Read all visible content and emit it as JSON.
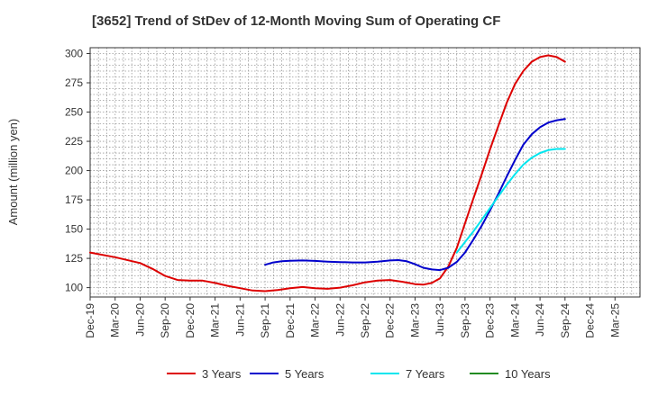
{
  "chart_data": {
    "type": "line",
    "title": "[3652]  Trend of StDev of 12-Month Moving Sum of Operating CF",
    "ylabel": "Amount (million yen)",
    "xlabel": "",
    "ylim": [
      92,
      305
    ],
    "yticks": [
      100,
      125,
      150,
      175,
      200,
      225,
      250,
      275,
      300
    ],
    "categories": [
      "Dec-19",
      "Mar-20",
      "Jun-20",
      "Sep-20",
      "Dec-20",
      "Mar-21",
      "Jun-21",
      "Sep-21",
      "Dec-21",
      "Mar-22",
      "Jun-22",
      "Sep-22",
      "Dec-22",
      "Mar-23",
      "Jun-23",
      "Sep-23",
      "Dec-23",
      "Mar-24",
      "Jun-24",
      "Sep-24",
      "Dec-24",
      "Mar-25"
    ],
    "grid": true,
    "legend_position": "bottom",
    "series": [
      {
        "name": "3 Years",
        "color": "#dd0000",
        "points": [
          [
            0,
            130
          ],
          [
            1,
            126
          ],
          [
            2,
            121
          ],
          [
            2.5,
            116
          ],
          [
            3,
            110
          ],
          [
            3.5,
            106.5
          ],
          [
            4,
            106
          ],
          [
            4.5,
            106
          ],
          [
            5,
            104
          ],
          [
            5.5,
            101.5
          ],
          [
            6,
            99.5
          ],
          [
            6.5,
            97.5
          ],
          [
            7,
            97
          ],
          [
            7.5,
            98
          ],
          [
            8,
            99.5
          ],
          [
            8.5,
            100.5
          ],
          [
            9,
            99.5
          ],
          [
            9.5,
            99
          ],
          [
            10,
            100
          ],
          [
            10.5,
            102
          ],
          [
            11,
            104.5
          ],
          [
            11.5,
            106
          ],
          [
            12,
            106.5
          ],
          [
            12.5,
            105
          ],
          [
            13,
            103
          ],
          [
            13.33,
            102.5
          ],
          [
            13.67,
            104
          ],
          [
            14,
            108
          ],
          [
            14.33,
            118
          ],
          [
            14.67,
            134
          ],
          [
            15,
            155
          ],
          [
            15.33,
            176
          ],
          [
            15.67,
            197
          ],
          [
            16,
            218
          ],
          [
            16.33,
            238
          ],
          [
            16.67,
            258
          ],
          [
            17,
            274
          ],
          [
            17.33,
            285
          ],
          [
            17.67,
            293
          ],
          [
            18,
            297
          ],
          [
            18.33,
            298.5
          ],
          [
            18.67,
            297
          ],
          [
            19,
            293
          ]
        ]
      },
      {
        "name": "5 Years",
        "color": "#0000cc",
        "points": [
          [
            7,
            119.5
          ],
          [
            7.33,
            121.5
          ],
          [
            7.67,
            122.5
          ],
          [
            8,
            123
          ],
          [
            8.5,
            123.2
          ],
          [
            9,
            122.8
          ],
          [
            9.5,
            122.2
          ],
          [
            10,
            121.8
          ],
          [
            10.5,
            121.5
          ],
          [
            11,
            121.5
          ],
          [
            11.5,
            122.2
          ],
          [
            12,
            123.2
          ],
          [
            12.33,
            123.5
          ],
          [
            12.67,
            122.5
          ],
          [
            13,
            120
          ],
          [
            13.33,
            117
          ],
          [
            13.67,
            115.5
          ],
          [
            14,
            115
          ],
          [
            14.33,
            117
          ],
          [
            14.67,
            122
          ],
          [
            15,
            130
          ],
          [
            15.33,
            141
          ],
          [
            15.67,
            153
          ],
          [
            16,
            166
          ],
          [
            16.33,
            180
          ],
          [
            16.67,
            195
          ],
          [
            17,
            209
          ],
          [
            17.33,
            222
          ],
          [
            17.67,
            231
          ],
          [
            18,
            237
          ],
          [
            18.33,
            241
          ],
          [
            18.67,
            243
          ],
          [
            19,
            244
          ]
        ]
      },
      {
        "name": "7 Years",
        "color": "#00e5ee",
        "points": [
          [
            14.67,
            130
          ],
          [
            15,
            139
          ],
          [
            15.33,
            148
          ],
          [
            15.67,
            158
          ],
          [
            16,
            168
          ],
          [
            16.33,
            178
          ],
          [
            16.67,
            188
          ],
          [
            17,
            197
          ],
          [
            17.33,
            205
          ],
          [
            17.67,
            211
          ],
          [
            18,
            215
          ],
          [
            18.33,
            217.5
          ],
          [
            18.67,
            218.5
          ],
          [
            19,
            218.5
          ]
        ]
      },
      {
        "name": "10 Years",
        "color": "#228b22",
        "points": []
      }
    ]
  }
}
